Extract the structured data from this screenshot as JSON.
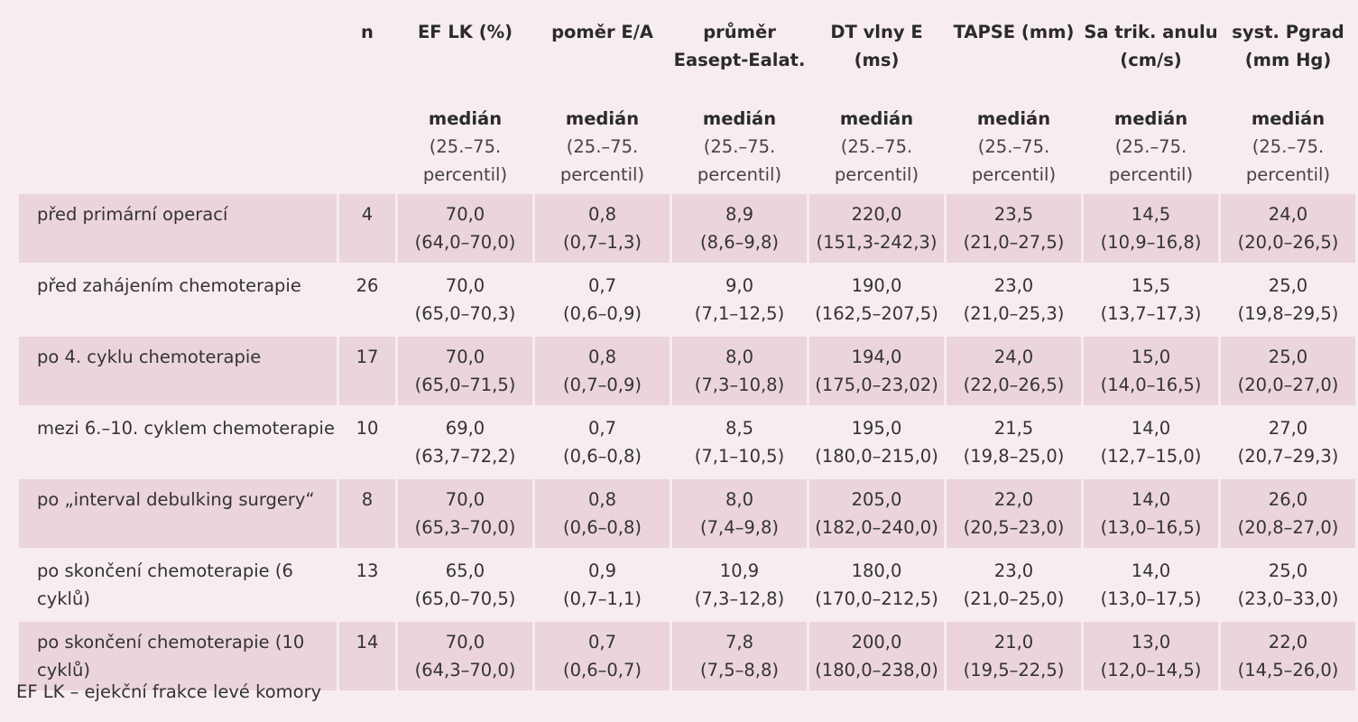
{
  "table": {
    "columns": [
      {
        "title": "",
        "stat": "",
        "sub": ""
      },
      {
        "title": "n",
        "stat": "",
        "sub": ""
      },
      {
        "title": "EF LK (%)",
        "stat": "medián",
        "sub": "(25.–75. percentil)"
      },
      {
        "title": "poměr E/A",
        "stat": "medián",
        "sub": "(25.–75. percentil)"
      },
      {
        "title": "průměr Easept-Ealat.",
        "stat": "medián",
        "sub": "(25.–75. percentil)"
      },
      {
        "title": "DT vlny E (ms)",
        "stat": "medián",
        "sub": "(25.–75. percentil)"
      },
      {
        "title": "TAPSE (mm)",
        "stat": "medián",
        "sub": "(25.–75. percentil)"
      },
      {
        "title": "Sa trik. anulu (cm/s)",
        "stat": "medián",
        "sub": "(25.–75. percentil)"
      },
      {
        "title": "syst. Pgrad (mm Hg)",
        "stat": "medián",
        "sub": "(25.–75. percentil)"
      }
    ],
    "rows": [
      {
        "label": "před primární operací",
        "n": "4",
        "cells": [
          [
            "70,0",
            "(64,0–70,0)"
          ],
          [
            "0,8",
            "(0,7–1,3)"
          ],
          [
            "8,9",
            "(8,6–9,8)"
          ],
          [
            "220,0",
            "(151,3-242,3)"
          ],
          [
            "23,5",
            "(21,0–27,5)"
          ],
          [
            "14,5",
            "(10,9–16,8)"
          ],
          [
            "24,0",
            "(20,0–26,5)"
          ]
        ]
      },
      {
        "label": "před zahájením chemoterapie",
        "n": "26",
        "cells": [
          [
            "70,0",
            "(65,0–70,3)"
          ],
          [
            "0,7",
            "(0,6–0,9)"
          ],
          [
            "9,0",
            "(7,1–12,5)"
          ],
          [
            "190,0",
            "(162,5–207,5)"
          ],
          [
            "23,0",
            "(21,0–25,3)"
          ],
          [
            "15,5",
            "(13,7–17,3)"
          ],
          [
            "25,0",
            "(19,8–29,5)"
          ]
        ]
      },
      {
        "label": "po 4. cyklu chemoterapie",
        "n": "17",
        "cells": [
          [
            "70,0",
            "(65,0–71,5)"
          ],
          [
            "0,8",
            "(0,7–0,9)"
          ],
          [
            "8,0",
            "(7,3–10,8)"
          ],
          [
            "194,0",
            "(175,0–23,02)"
          ],
          [
            "24,0",
            "(22,0–26,5)"
          ],
          [
            "15,0",
            "(14,0–16,5)"
          ],
          [
            "25,0",
            "(20,0–27,0)"
          ]
        ]
      },
      {
        "label": "mezi 6.–10. cyklem chemoterapie",
        "n": "10",
        "cells": [
          [
            "69,0",
            "(63,7–72,2)"
          ],
          [
            "0,7",
            "(0,6–0,8)"
          ],
          [
            "8,5",
            "(7,1–10,5)"
          ],
          [
            "195,0",
            "(180,0–215,0)"
          ],
          [
            "21,5",
            "(19,8–25,0)"
          ],
          [
            "14,0",
            "(12,7–15,0)"
          ],
          [
            "27,0",
            "(20,7–29,3)"
          ]
        ]
      },
      {
        "label": "po „interval debulking surgery“",
        "n": "8",
        "cells": [
          [
            "70,0",
            "(65,3–70,0)"
          ],
          [
            "0,8",
            "(0,6–0,8)"
          ],
          [
            "8,0",
            "(7,4–9,8)"
          ],
          [
            "205,0",
            "(182,0–240,0)"
          ],
          [
            "22,0",
            "(20,5–23,0)"
          ],
          [
            "14,0",
            "(13,0–16,5)"
          ],
          [
            "26,0",
            "(20,8–27,0)"
          ]
        ]
      },
      {
        "label": "po skončení chemoterapie (6 cyklů)",
        "n": "13",
        "cells": [
          [
            "65,0",
            "(65,0–70,5)"
          ],
          [
            "0,9",
            "(0,7–1,1)"
          ],
          [
            "10,9",
            "(7,3–12,8)"
          ],
          [
            "180,0",
            "(170,0–212,5)"
          ],
          [
            "23,0",
            "(21,0–25,0)"
          ],
          [
            "14,0",
            "(13,0–17,5)"
          ],
          [
            "25,0",
            "(23,0–33,0)"
          ]
        ]
      },
      {
        "label": "po skončení chemoterapie (10 cyklů)",
        "n": "14",
        "cells": [
          [
            "70,0",
            "(64,3–70,0)"
          ],
          [
            "0,7",
            "(0,6–0,7)"
          ],
          [
            "7,8",
            "(7,5–8,8)"
          ],
          [
            "200,0",
            "(180,0–238,0)"
          ],
          [
            "21,0",
            "(19,5–22,5)"
          ],
          [
            "13,0",
            "(12,0–14,5)"
          ],
          [
            "22,0",
            "(14,5–26,0)"
          ]
        ]
      }
    ]
  },
  "footnote": "EF LK – ejekční frakce levé komory",
  "colors": {
    "background": "#f7ecef",
    "row_shade": "#ebd4dc"
  }
}
